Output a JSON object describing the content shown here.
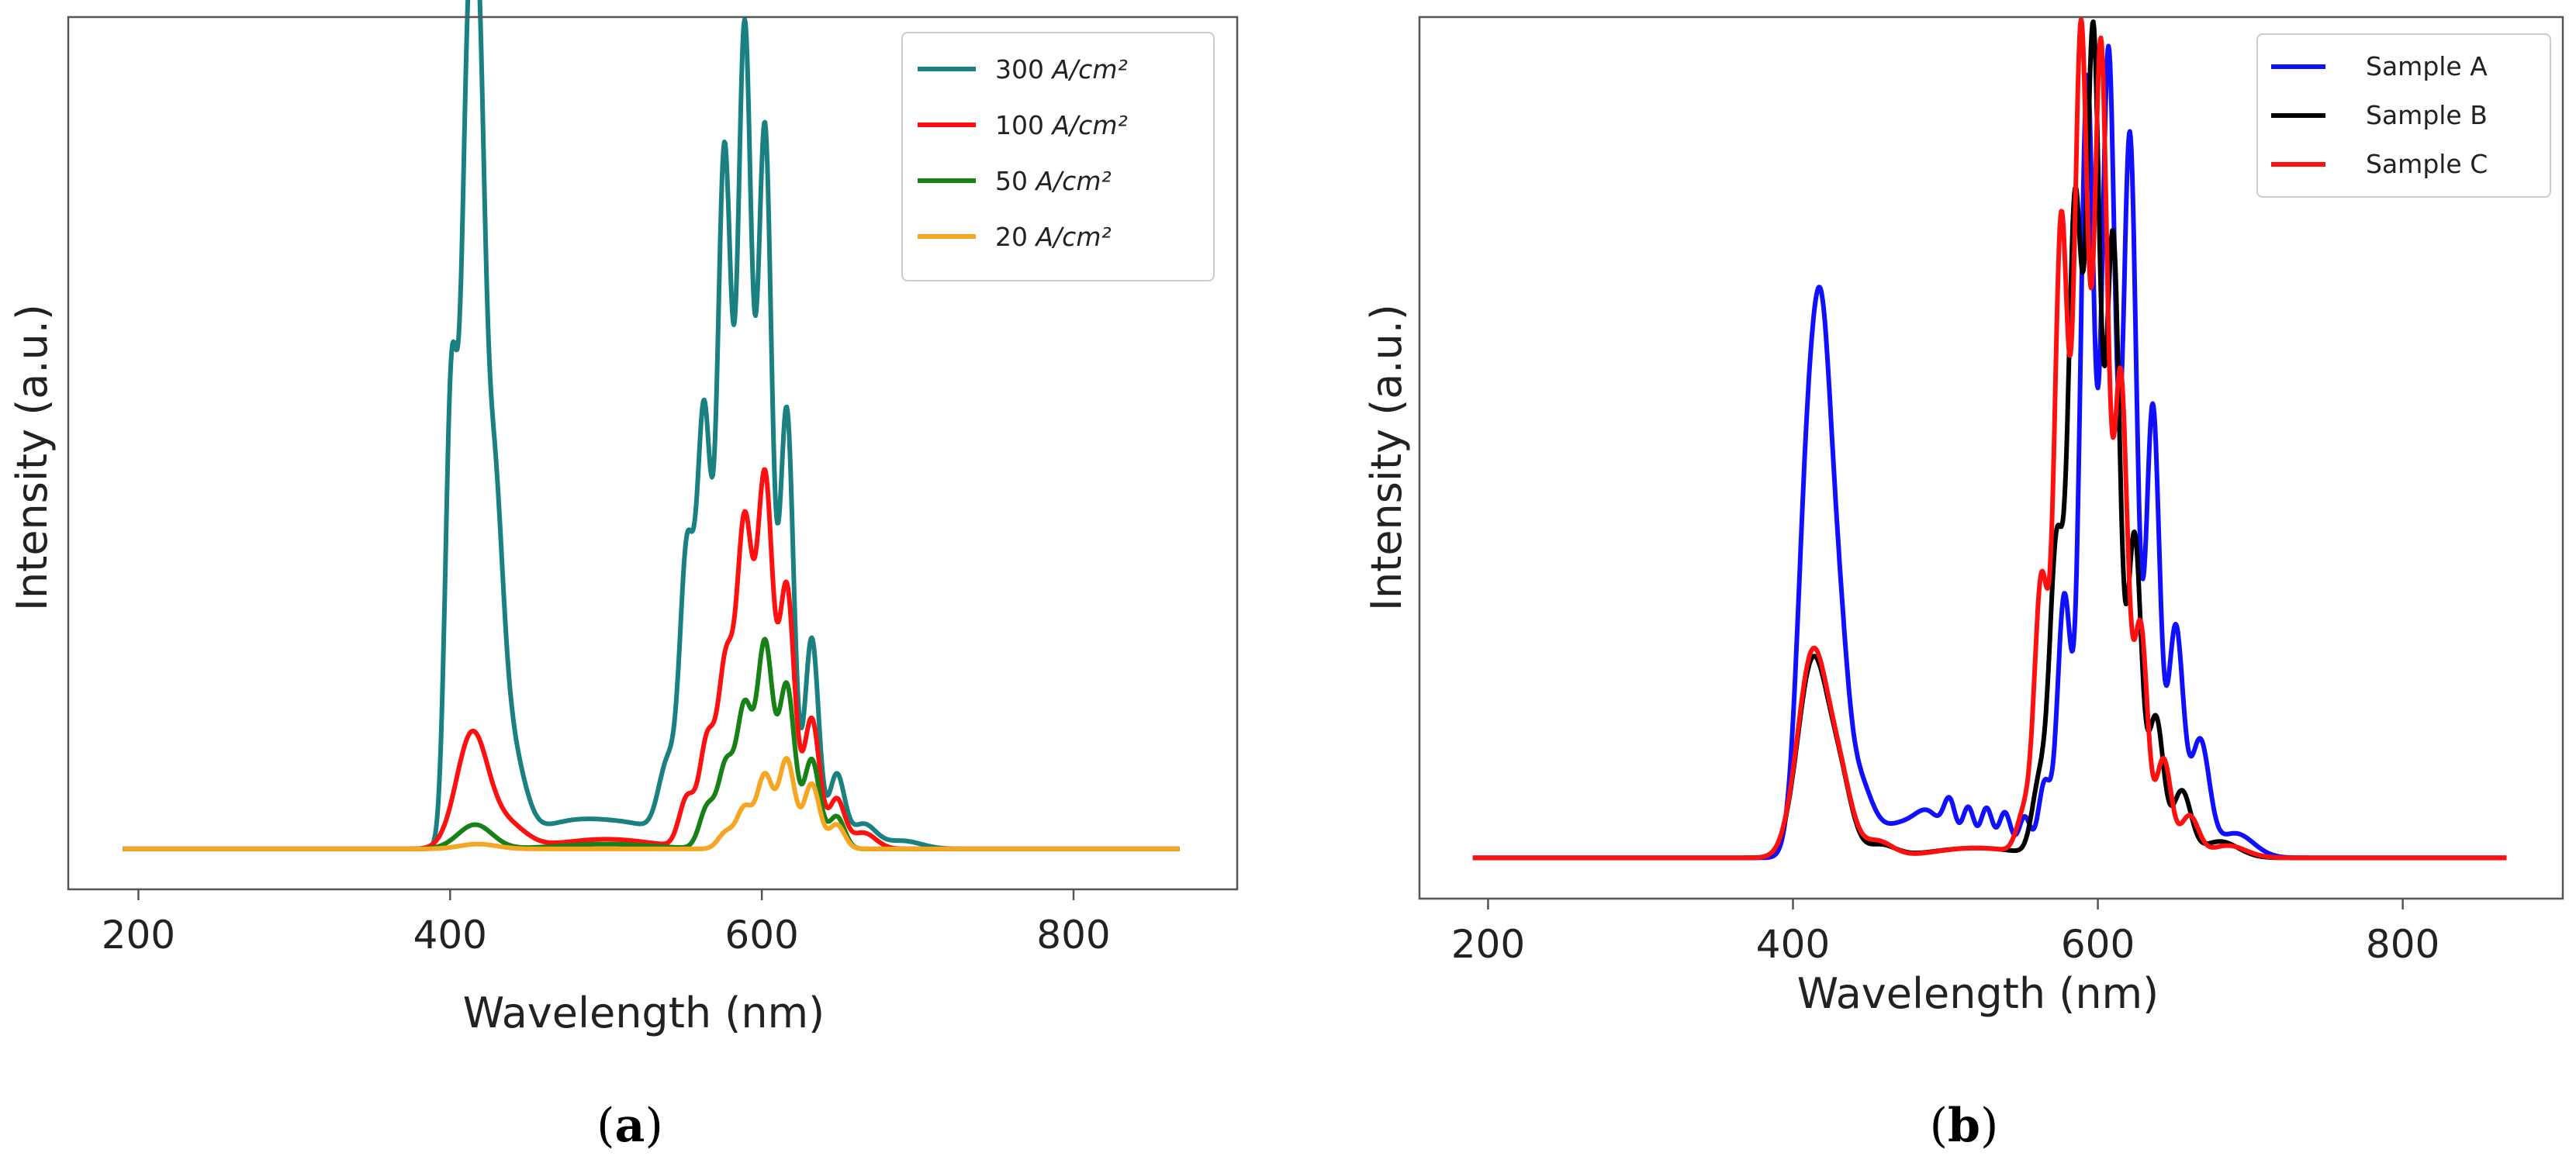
{
  "chart_data": [
    {
      "panel_label": "a",
      "type": "line",
      "xlabel": "Wavelength (nm)",
      "ylabel": "Intensity (a.u.)",
      "xlim": [
        155,
        905
      ],
      "ylim": [
        -0.05,
        1.03
      ],
      "xticks": [
        200,
        400,
        600,
        800
      ],
      "y_ticks_shown": false,
      "grid": false,
      "legend_position": "top-right",
      "series": [
        {
          "name": "300 A/cm²",
          "legend_value": "300 ",
          "legend_unit": "A/cm²",
          "color": "#1a8080",
          "baseline": 0.0,
          "peaks": [
            {
              "x": 401,
              "height": 0.58,
              "width": 4
            },
            {
              "x": 411,
              "height": 0.82,
              "width": 4
            },
            {
              "x": 418,
              "height": 0.78,
              "width": 4
            },
            {
              "x": 427,
              "height": 0.42,
              "width": 6
            },
            {
              "x": 438,
              "height": 0.12,
              "width": 9
            },
            {
              "x": 475,
              "height": 0.03,
              "width": 25
            },
            {
              "x": 520,
              "height": 0.025,
              "width": 25
            },
            {
              "x": 540,
              "height": 0.09,
              "width": 6
            },
            {
              "x": 552,
              "height": 0.34,
              "width": 4.5
            },
            {
              "x": 563,
              "height": 0.52,
              "width": 4.5
            },
            {
              "x": 576,
              "height": 0.85,
              "width": 4.5
            },
            {
              "x": 589,
              "height": 1.0,
              "width": 4.5
            },
            {
              "x": 602,
              "height": 0.88,
              "width": 4.5
            },
            {
              "x": 616,
              "height": 0.54,
              "width": 4.5
            },
            {
              "x": 632,
              "height": 0.26,
              "width": 4.5
            },
            {
              "x": 648,
              "height": 0.09,
              "width": 5
            },
            {
              "x": 665,
              "height": 0.03,
              "width": 8
            },
            {
              "x": 690,
              "height": 0.01,
              "width": 12
            }
          ]
        },
        {
          "name": "100 A/cm²",
          "legend_value": "100 ",
          "legend_unit": "A/cm²",
          "color": "#ff1010",
          "baseline": 0.0,
          "peaks": [
            {
              "x": 414,
              "height": 0.14,
              "width": 10
            },
            {
              "x": 436,
              "height": 0.03,
              "width": 12
            },
            {
              "x": 500,
              "height": 0.012,
              "width": 30
            },
            {
              "x": 552,
              "height": 0.06,
              "width": 5
            },
            {
              "x": 565,
              "height": 0.13,
              "width": 5
            },
            {
              "x": 577,
              "height": 0.22,
              "width": 5
            },
            {
              "x": 589,
              "height": 0.39,
              "width": 5
            },
            {
              "x": 602,
              "height": 0.45,
              "width": 5
            },
            {
              "x": 616,
              "height": 0.32,
              "width": 5
            },
            {
              "x": 632,
              "height": 0.16,
              "width": 5
            },
            {
              "x": 648,
              "height": 0.06,
              "width": 5
            },
            {
              "x": 665,
              "height": 0.02,
              "width": 8
            }
          ]
        },
        {
          "name": "50 A/cm²",
          "legend_value": "50 ",
          "legend_unit": "A/cm²",
          "color": "#178017",
          "baseline": 0.0,
          "peaks": [
            {
              "x": 416,
              "height": 0.03,
              "width": 11
            },
            {
              "x": 500,
              "height": 0.006,
              "width": 30
            },
            {
              "x": 565,
              "height": 0.05,
              "width": 5
            },
            {
              "x": 577,
              "height": 0.1,
              "width": 5
            },
            {
              "x": 589,
              "height": 0.17,
              "width": 5
            },
            {
              "x": 602,
              "height": 0.25,
              "width": 5
            },
            {
              "x": 616,
              "height": 0.2,
              "width": 5
            },
            {
              "x": 632,
              "height": 0.11,
              "width": 5
            },
            {
              "x": 648,
              "height": 0.04,
              "width": 5
            }
          ]
        },
        {
          "name": "20 A/cm²",
          "legend_value": "20 ",
          "legend_unit": "A/cm²",
          "color": "#f5a623",
          "baseline": 0.0,
          "peaks": [
            {
              "x": 418,
              "height": 0.006,
              "width": 12
            },
            {
              "x": 577,
              "height": 0.02,
              "width": 5
            },
            {
              "x": 589,
              "height": 0.05,
              "width": 5
            },
            {
              "x": 602,
              "height": 0.09,
              "width": 5
            },
            {
              "x": 616,
              "height": 0.11,
              "width": 5
            },
            {
              "x": 632,
              "height": 0.08,
              "width": 5
            },
            {
              "x": 648,
              "height": 0.03,
              "width": 5
            }
          ]
        }
      ]
    },
    {
      "panel_label": "b",
      "type": "line",
      "xlabel": "Wavelength (nm)",
      "ylabel": "Intensity (a.u.)",
      "xlim": [
        155,
        905
      ],
      "ylim": [
        -0.05,
        1.03
      ],
      "xticks": [
        200,
        400,
        600,
        800
      ],
      "y_ticks_shown": false,
      "grid": false,
      "legend_position": "top-right",
      "series": [
        {
          "name": "Sample A",
          "color": "#1010ff",
          "baseline": 0.0,
          "peaks": [
            {
              "x": 410,
              "height": 0.46,
              "width": 7
            },
            {
              "x": 420,
              "height": 0.45,
              "width": 6
            },
            {
              "x": 430,
              "height": 0.22,
              "width": 6
            },
            {
              "x": 442,
              "height": 0.09,
              "width": 9
            },
            {
              "x": 470,
              "height": 0.04,
              "width": 15
            },
            {
              "x": 490,
              "height": 0.04,
              "width": 9
            },
            {
              "x": 503,
              "height": 0.055,
              "width": 4
            },
            {
              "x": 515,
              "height": 0.06,
              "width": 4
            },
            {
              "x": 527,
              "height": 0.06,
              "width": 4
            },
            {
              "x": 539,
              "height": 0.055,
              "width": 4
            },
            {
              "x": 552,
              "height": 0.05,
              "width": 4
            },
            {
              "x": 565,
              "height": 0.09,
              "width": 4
            },
            {
              "x": 578,
              "height": 0.32,
              "width": 4.5
            },
            {
              "x": 593,
              "height": 0.95,
              "width": 4.5
            },
            {
              "x": 607,
              "height": 0.98,
              "width": 4.5
            },
            {
              "x": 621,
              "height": 0.88,
              "width": 4.5
            },
            {
              "x": 636,
              "height": 0.55,
              "width": 4.5
            },
            {
              "x": 651,
              "height": 0.28,
              "width": 5
            },
            {
              "x": 667,
              "height": 0.14,
              "width": 6
            },
            {
              "x": 690,
              "height": 0.03,
              "width": 12
            }
          ]
        },
        {
          "name": "Sample B",
          "color": "#000000",
          "baseline": 0.0,
          "peaks": [
            {
              "x": 413,
              "height": 0.24,
              "width": 10
            },
            {
              "x": 431,
              "height": 0.08,
              "width": 8
            },
            {
              "x": 457,
              "height": 0.015,
              "width": 10
            },
            {
              "x": 520,
              "height": 0.012,
              "width": 30
            },
            {
              "x": 562,
              "height": 0.09,
              "width": 5
            },
            {
              "x": 573,
              "height": 0.37,
              "width": 4.5
            },
            {
              "x": 585,
              "height": 0.78,
              "width": 4.5
            },
            {
              "x": 597,
              "height": 0.99,
              "width": 4.5
            },
            {
              "x": 610,
              "height": 0.75,
              "width": 4.5
            },
            {
              "x": 624,
              "height": 0.39,
              "width": 4.5
            },
            {
              "x": 638,
              "height": 0.17,
              "width": 5
            },
            {
              "x": 655,
              "height": 0.08,
              "width": 6
            },
            {
              "x": 680,
              "height": 0.02,
              "width": 12
            }
          ]
        },
        {
          "name": "Sample C",
          "color": "#ff1010",
          "baseline": 0.0,
          "peaks": [
            {
              "x": 413,
              "height": 0.25,
              "width": 10
            },
            {
              "x": 431,
              "height": 0.08,
              "width": 8
            },
            {
              "x": 455,
              "height": 0.02,
              "width": 10
            },
            {
              "x": 520,
              "height": 0.012,
              "width": 28
            },
            {
              "x": 552,
              "height": 0.05,
              "width": 5
            },
            {
              "x": 563,
              "height": 0.33,
              "width": 4.5
            },
            {
              "x": 576,
              "height": 0.77,
              "width": 4.5
            },
            {
              "x": 589,
              "height": 1.0,
              "width": 4.5
            },
            {
              "x": 602,
              "height": 0.98,
              "width": 4.5
            },
            {
              "x": 615,
              "height": 0.58,
              "width": 4.5
            },
            {
              "x": 628,
              "height": 0.28,
              "width": 4.5
            },
            {
              "x": 643,
              "height": 0.12,
              "width": 5
            },
            {
              "x": 660,
              "height": 0.05,
              "width": 6
            },
            {
              "x": 685,
              "height": 0.015,
              "width": 12
            }
          ]
        }
      ]
    }
  ]
}
